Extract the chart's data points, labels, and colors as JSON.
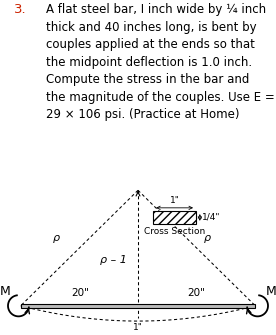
{
  "title_number": "3.",
  "title_color": "#cc2200",
  "title_text": "A flat steel bar, I inch wide by ¼ inch\nthick and 40 inches long, is bent by\ncouples applied at the ends so that\nthe midpoint deflection is 1.0 inch.\nCompute the stress in the bar and\nthe magnitude of the couples. Use E =\n29 × 106 psi. (Practice at Home)",
  "bg_color": "#ffffff",
  "bar_color": "#bbbbbb",
  "cross_section_label": "Cross Section",
  "dim_1inch": "1\"",
  "dim_quarter": "1/4\"",
  "label_rho_left": "ρ",
  "label_rho_center": "ρ – 1",
  "label_rho_right": "ρ",
  "label_M_left": "M",
  "label_M_right": "M",
  "label_20_left": "20\"",
  "label_20_right": "20\"",
  "label_1inch_bottom": "1\""
}
